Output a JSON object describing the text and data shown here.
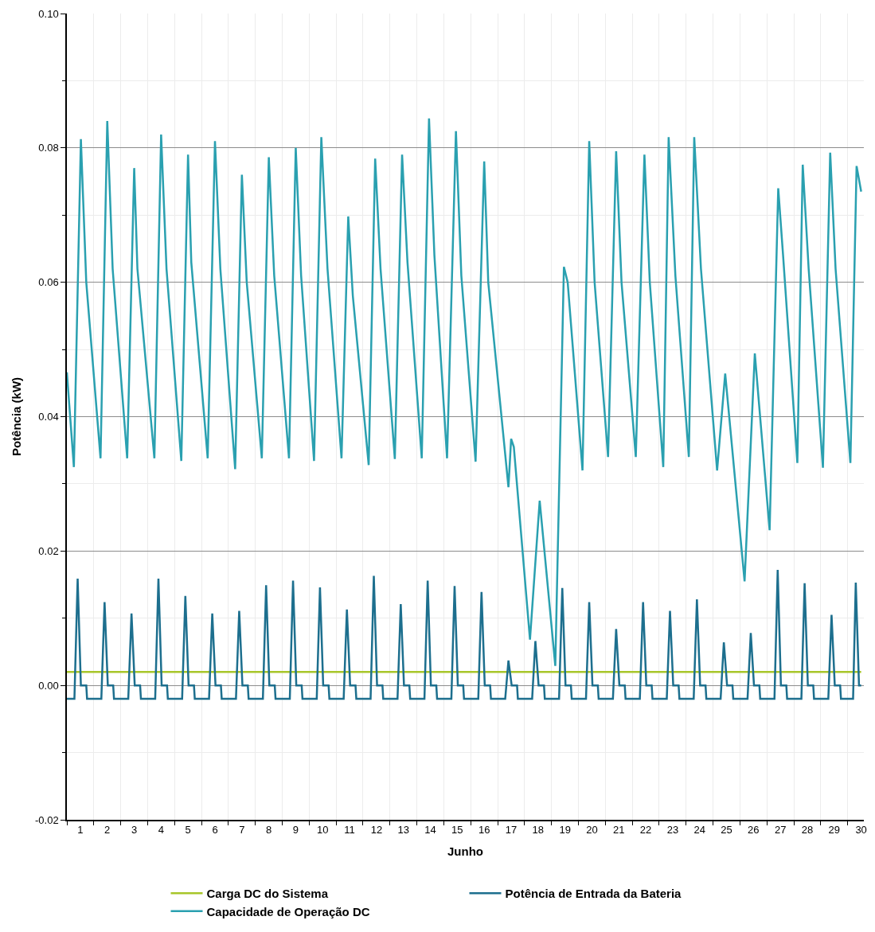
{
  "chart_data": {
    "type": "line",
    "xlabel": "Junho",
    "ylabel": "Potência (kW)",
    "xlim": [
      0,
      29.6
    ],
    "xticks": [
      {
        "value": 0,
        "label": null
      },
      {
        "value": 0.5,
        "label": "1"
      },
      {
        "value": 1,
        "label": null
      },
      {
        "value": 1.5,
        "label": "2"
      },
      {
        "value": 2,
        "label": null
      },
      {
        "value": 2.5,
        "label": "3"
      },
      {
        "value": 3,
        "label": null
      },
      {
        "value": 3.5,
        "label": "4"
      },
      {
        "value": 4,
        "label": null
      },
      {
        "value": 4.5,
        "label": "5"
      },
      {
        "value": 5,
        "label": null
      },
      {
        "value": 5.5,
        "label": "6"
      },
      {
        "value": 6,
        "label": null
      },
      {
        "value": 6.5,
        "label": "7"
      },
      {
        "value": 7,
        "label": null
      },
      {
        "value": 7.5,
        "label": "8"
      },
      {
        "value": 8,
        "label": null
      },
      {
        "value": 8.5,
        "label": "9"
      },
      {
        "value": 9,
        "label": null
      },
      {
        "value": 9.5,
        "label": "10"
      },
      {
        "value": 10,
        "label": null
      },
      {
        "value": 10.5,
        "label": "11"
      },
      {
        "value": 11,
        "label": null
      },
      {
        "value": 11.5,
        "label": "12"
      },
      {
        "value": 12,
        "label": null
      },
      {
        "value": 12.5,
        "label": "13"
      },
      {
        "value": 13,
        "label": null
      },
      {
        "value": 13.5,
        "label": "14"
      },
      {
        "value": 14,
        "label": null
      },
      {
        "value": 14.5,
        "label": "15"
      },
      {
        "value": 15,
        "label": null
      },
      {
        "value": 15.5,
        "label": "16"
      },
      {
        "value": 16,
        "label": null
      },
      {
        "value": 16.5,
        "label": "17"
      },
      {
        "value": 17,
        "label": null
      },
      {
        "value": 17.5,
        "label": "18"
      },
      {
        "value": 18,
        "label": null
      },
      {
        "value": 18.5,
        "label": "19"
      },
      {
        "value": 19,
        "label": null
      },
      {
        "value": 19.5,
        "label": "20"
      },
      {
        "value": 20,
        "label": null
      },
      {
        "value": 20.5,
        "label": "21"
      },
      {
        "value": 21,
        "label": null
      },
      {
        "value": 21.5,
        "label": "22"
      },
      {
        "value": 22,
        "label": null
      },
      {
        "value": 22.5,
        "label": "23"
      },
      {
        "value": 23,
        "label": null
      },
      {
        "value": 23.5,
        "label": "24"
      },
      {
        "value": 24,
        "label": null
      },
      {
        "value": 24.5,
        "label": "25"
      },
      {
        "value": 25,
        "label": null
      },
      {
        "value": 25.5,
        "label": "26"
      },
      {
        "value": 26,
        "label": null
      },
      {
        "value": 26.5,
        "label": "27"
      },
      {
        "value": 27,
        "label": null
      },
      {
        "value": 27.5,
        "label": "28"
      },
      {
        "value": 28,
        "label": null
      },
      {
        "value": 28.5,
        "label": "29"
      },
      {
        "value": 29,
        "label": null
      },
      {
        "value": 29.5,
        "label": "30"
      }
    ],
    "ylim": [
      -0.02,
      0.1
    ],
    "yticks": [
      {
        "value": -0.02,
        "label": "-0.02"
      },
      {
        "value": -0.01,
        "label": null
      },
      {
        "value": 0,
        "label": "0.00"
      },
      {
        "value": 0.01,
        "label": null
      },
      {
        "value": 0.02,
        "label": "0.02"
      },
      {
        "value": 0.03,
        "label": null
      },
      {
        "value": 0.04,
        "label": "0.04"
      },
      {
        "value": 0.05,
        "label": null
      },
      {
        "value": 0.06,
        "label": "0.06"
      },
      {
        "value": 0.07,
        "label": null
      },
      {
        "value": 0.08,
        "label": "0.08"
      },
      {
        "value": 0.09,
        "label": null
      },
      {
        "value": 0.1,
        "label": "0.10"
      }
    ],
    "grid": true,
    "legend": "bottom",
    "marker": "none",
    "line_style": "solid",
    "series": [
      {
        "name": "Carga DC do Sistema",
        "color": "#a8c62a",
        "x": [
          0,
          29.5
        ],
        "values": [
          0.002,
          0.002
        ]
      },
      {
        "name": "Potência de Entrada da Bateria",
        "color": "#1d6f8e",
        "x": [
          0,
          0.28,
          0.4,
          0.52,
          0.72,
          0.75,
          1.28,
          1.4,
          1.52,
          1.72,
          1.75,
          2.28,
          2.4,
          2.52,
          2.72,
          2.75,
          3.28,
          3.4,
          3.52,
          3.72,
          3.75,
          4.28,
          4.4,
          4.52,
          4.72,
          4.75,
          5.28,
          5.4,
          5.52,
          5.72,
          5.75,
          6.28,
          6.4,
          6.52,
          6.72,
          6.75,
          7.28,
          7.4,
          7.52,
          7.72,
          7.75,
          8.28,
          8.4,
          8.52,
          8.72,
          8.75,
          9.28,
          9.4,
          9.52,
          9.72,
          9.75,
          10.28,
          10.4,
          10.52,
          10.72,
          10.75,
          11.28,
          11.4,
          11.52,
          11.72,
          11.75,
          12.28,
          12.4,
          12.52,
          12.72,
          12.75,
          13.28,
          13.4,
          13.52,
          13.72,
          13.75,
          14.28,
          14.4,
          14.52,
          14.72,
          14.75,
          15.28,
          15.4,
          15.52,
          15.72,
          15.75,
          16.28,
          16.4,
          16.52,
          16.72,
          16.75,
          17.28,
          17.4,
          17.52,
          17.72,
          17.75,
          18.28,
          18.4,
          18.52,
          18.72,
          18.75,
          19.28,
          19.4,
          19.52,
          19.72,
          19.75,
          20.28,
          20.4,
          20.52,
          20.72,
          20.75,
          21.28,
          21.4,
          21.52,
          21.72,
          21.75,
          22.28,
          22.4,
          22.52,
          22.72,
          22.75,
          23.28,
          23.4,
          23.52,
          23.72,
          23.75,
          24.28,
          24.4,
          24.52,
          24.72,
          24.75,
          25.28,
          25.4,
          25.52,
          25.72,
          25.75,
          26.28,
          26.4,
          26.52,
          26.72,
          26.75,
          27.28,
          27.4,
          27.52,
          27.72,
          27.75,
          28.28,
          28.4,
          28.52,
          28.72,
          28.75,
          29.2,
          29.3,
          29.42,
          29.5
        ],
        "values": [
          -0.002,
          -0.002,
          0.0159,
          0,
          0,
          -0.002,
          -0.002,
          0.0124,
          0,
          0,
          -0.002,
          -0.002,
          0.0107,
          0,
          0,
          -0.002,
          -0.002,
          0.0159,
          0,
          0,
          -0.002,
          -0.002,
          0.0133,
          0,
          0,
          -0.002,
          -0.002,
          0.0107,
          0,
          0,
          -0.002,
          -0.002,
          0.0111,
          0,
          0,
          -0.002,
          -0.002,
          0.0149,
          0,
          0,
          -0.002,
          -0.002,
          0.0156,
          0,
          0,
          -0.002,
          -0.002,
          0.0146,
          0,
          0,
          -0.002,
          -0.002,
          0.0113,
          0,
          0,
          -0.002,
          -0.002,
          0.0163,
          0,
          0,
          -0.002,
          -0.002,
          0.0121,
          0,
          0,
          -0.002,
          -0.002,
          0.0156,
          0,
          0,
          -0.002,
          -0.002,
          0.0148,
          0,
          0,
          -0.002,
          -0.002,
          0.0139,
          0,
          0,
          -0.002,
          -0.002,
          0.0037,
          0,
          0,
          -0.002,
          -0.002,
          0.0066,
          0,
          0,
          -0.002,
          -0.002,
          0.0145,
          0,
          0,
          -0.002,
          -0.002,
          0.0124,
          0,
          0,
          -0.002,
          -0.002,
          0.0084,
          0,
          0,
          -0.002,
          -0.002,
          0.0124,
          0,
          0,
          -0.002,
          -0.002,
          0.0111,
          0,
          0,
          -0.002,
          -0.002,
          0.0128,
          0,
          0,
          -0.002,
          -0.002,
          0.0064,
          0,
          0,
          -0.002,
          -0.002,
          0.0078,
          0,
          0,
          -0.002,
          -0.002,
          0.0172,
          0,
          0,
          -0.002,
          -0.002,
          0.0152,
          0,
          0,
          -0.002,
          -0.002,
          0.0105,
          0,
          0,
          -0.002,
          -0.002,
          0.0153,
          0,
          0
        ]
      },
      {
        "name": "Capacidade de Operação DC",
        "color": "#2aa0b0",
        "x": [
          0,
          0.26,
          0.52,
          0.72,
          1.25,
          1.5,
          1.7,
          2.24,
          2.5,
          2.62,
          3.25,
          3.5,
          3.7,
          4.25,
          4.5,
          4.62,
          5.23,
          5.5,
          5.7,
          6.25,
          6.5,
          6.68,
          7.24,
          7.5,
          7.7,
          8.25,
          8.5,
          8.7,
          9.18,
          9.45,
          9.68,
          10.2,
          10.45,
          10.62,
          11.21,
          11.45,
          11.65,
          12.18,
          12.45,
          12.65,
          13.18,
          13.45,
          13.65,
          14.12,
          14.45,
          14.65,
          15.18,
          15.5,
          15.65,
          16.4,
          16.5,
          16.6,
          17.2,
          17.56,
          18.14,
          18.46,
          18.6,
          19.15,
          19.4,
          19.6,
          20.1,
          20.4,
          20.6,
          21.13,
          21.45,
          21.65,
          22.15,
          22.35,
          22.6,
          23.1,
          23.3,
          23.55,
          24.15,
          24.45,
          25.17,
          25.55,
          26.1,
          26.42,
          26.6,
          27.13,
          27.33,
          27.55,
          28.08,
          28.35,
          28.55,
          29.1,
          29.33,
          29.5
        ],
        "values": [
          0.0466,
          0.0325,
          0.0813,
          0.06,
          0.0338,
          0.084,
          0.062,
          0.0338,
          0.077,
          0.062,
          0.0338,
          0.082,
          0.062,
          0.0334,
          0.079,
          0.063,
          0.0338,
          0.081,
          0.062,
          0.0322,
          0.076,
          0.06,
          0.0338,
          0.0786,
          0.061,
          0.0338,
          0.08,
          0.061,
          0.0334,
          0.0816,
          0.062,
          0.0338,
          0.0698,
          0.058,
          0.0328,
          0.0784,
          0.062,
          0.0337,
          0.079,
          0.063,
          0.0338,
          0.0844,
          0.064,
          0.0338,
          0.0825,
          0.061,
          0.0333,
          0.078,
          0.06,
          0.0295,
          0.0367,
          0.0355,
          0.0068,
          0.0275,
          0.0029,
          0.0623,
          0.06,
          0.032,
          0.081,
          0.06,
          0.034,
          0.0795,
          0.06,
          0.034,
          0.079,
          0.06,
          0.0325,
          0.0816,
          0.061,
          0.034,
          0.0816,
          0.062,
          0.032,
          0.0464,
          0.0155,
          0.0494,
          0.0231,
          0.074,
          0.064,
          0.0331,
          0.0775,
          0.062,
          0.0324,
          0.0793,
          0.062,
          0.0331,
          0.0773,
          0.0735
        ]
      }
    ]
  }
}
